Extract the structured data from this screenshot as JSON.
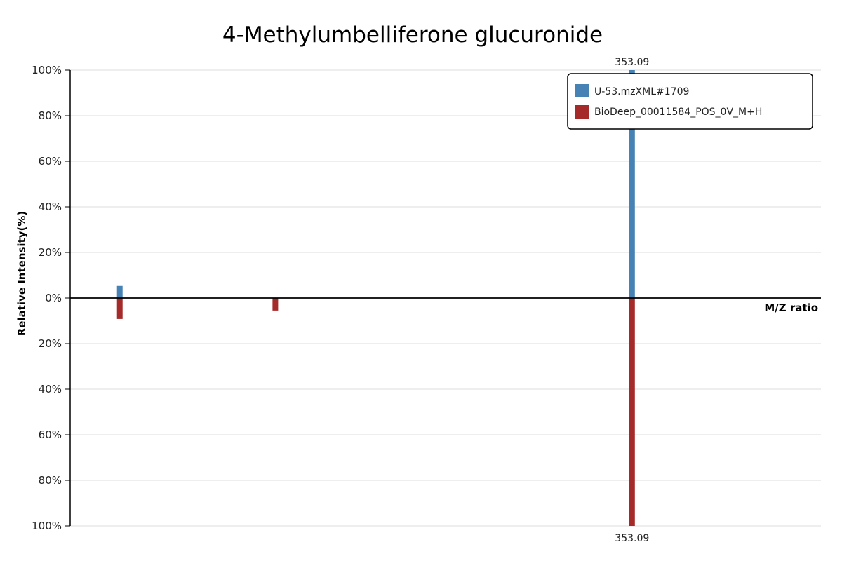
{
  "chart_data": {
    "type": "bar",
    "title": "4-Methylumbelliferone glucuronide",
    "ylabel": "Relative Intensity(%)",
    "xlabel": "M/Z ratio",
    "ylim_top": [
      0,
      100
    ],
    "ylim_bottom": [
      0,
      100
    ],
    "y_ticks_top": [
      "100%",
      "80%",
      "60%",
      "40%",
      "20%",
      "0%"
    ],
    "y_ticks_bottom": [
      "20%",
      "40%",
      "60%",
      "80%",
      "100%"
    ],
    "y_tick_values_top": [
      100,
      80,
      60,
      40,
      20,
      0
    ],
    "y_tick_values_bottom": [
      20,
      40,
      60,
      80,
      100
    ],
    "grid": true,
    "legend_position": "top-right",
    "series": [
      {
        "name": "U-53.mzXML#1709",
        "color": "#4682B4",
        "direction": "up",
        "peaks": [
          {
            "mz": 177.05,
            "intensity": 5.3,
            "label": ""
          },
          {
            "mz": 353.09,
            "intensity": 100,
            "label": "353.09"
          }
        ]
      },
      {
        "name": "BioDeep_00011584_POS_0V_M+H",
        "color": "#A52A2A",
        "direction": "down",
        "peaks": [
          {
            "mz": 177.05,
            "intensity": 9.2,
            "label": ""
          },
          {
            "mz": 230.5,
            "intensity": 5.5,
            "label": ""
          },
          {
            "mz": 353.09,
            "intensity": 100,
            "label": "353.09"
          }
        ]
      }
    ],
    "x_range": [
      160,
      418
    ]
  }
}
